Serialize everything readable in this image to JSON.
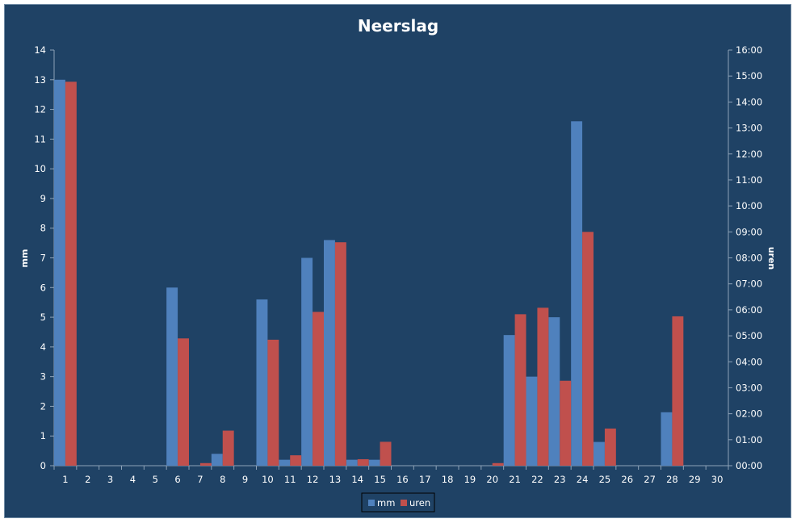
{
  "colors": {
    "background": "#1f4265",
    "mm": "#4f81bd",
    "uren": "#c0504d",
    "axis": "#8ea3b8",
    "text": "#ffffff"
  },
  "chart_data": {
    "type": "bar",
    "title": "Neerslag",
    "xlabel": "",
    "ylabel": "mm",
    "y2label": "uren",
    "ylim": [
      0,
      14
    ],
    "y_ticks": [
      "0",
      "1",
      "2",
      "3",
      "4",
      "5",
      "6",
      "7",
      "8",
      "9",
      "10",
      "11",
      "12",
      "13",
      "14"
    ],
    "y2lim_hours": [
      0,
      16
    ],
    "y2_ticks": [
      "00:00",
      "01:00",
      "02:00",
      "03:00",
      "04:00",
      "05:00",
      "06:00",
      "07:00",
      "08:00",
      "09:00",
      "10:00",
      "11:00",
      "12:00",
      "13:00",
      "14:00",
      "15:00",
      "16:00"
    ],
    "categories": [
      "1",
      "2",
      "3",
      "4",
      "5",
      "6",
      "7",
      "8",
      "9",
      "10",
      "11",
      "12",
      "13",
      "14",
      "15",
      "16",
      "17",
      "18",
      "19",
      "20",
      "21",
      "22",
      "23",
      "24",
      "25",
      "26",
      "27",
      "28",
      "29",
      "30"
    ],
    "series": [
      {
        "name": "mm",
        "axis": "left",
        "values": [
          13.0,
          0,
          0,
          0,
          0,
          6.0,
          0,
          0.4,
          0,
          5.6,
          0.2,
          7.0,
          7.6,
          0.2,
          0.2,
          0,
          0,
          0,
          0,
          0,
          4.4,
          3.0,
          5.0,
          11.6,
          0.8,
          0,
          0,
          1.8,
          0,
          0
        ]
      },
      {
        "name": "uren",
        "axis": "right",
        "unit": "hours",
        "values": [
          14.78,
          0,
          0,
          0,
          0,
          4.9,
          0.1,
          1.35,
          0,
          4.85,
          0.4,
          5.92,
          8.6,
          0.25,
          0.92,
          0,
          0,
          0,
          0,
          0.1,
          5.83,
          6.08,
          3.27,
          9.0,
          1.43,
          0,
          0,
          5.75,
          0,
          0
        ]
      }
    ],
    "legend_position": "bottom",
    "grid": false
  }
}
